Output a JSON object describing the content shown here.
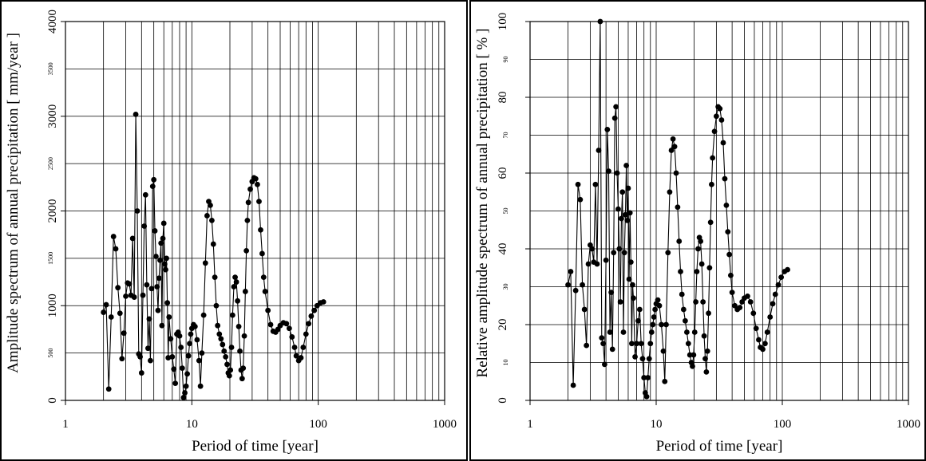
{
  "chart_data": [
    {
      "type": "scatter",
      "title": "",
      "xlabel": "Period of time [year]",
      "ylabel": "Amplitude spectrum of annual precipitation [ mm/year ]",
      "x_scale": "log",
      "xlim": [
        1,
        1000
      ],
      "ylim": [
        0,
        4000
      ],
      "x_tick_labels": [
        "1",
        "10",
        "100",
        "1000"
      ],
      "y_tick_labels_major": [
        "0",
        "1000",
        "2000",
        "3000",
        "4000"
      ],
      "y_tick_labels_minor": [
        "500",
        "1500",
        "2500",
        "3500"
      ],
      "grid": true,
      "marker": "filled circle with connecting line",
      "series": [
        {
          "points": [
            [
              2.0,
              930
            ],
            [
              2.1,
              1010
            ],
            [
              2.2,
              120
            ],
            [
              2.3,
              880
            ],
            [
              2.4,
              1730
            ],
            [
              2.5,
              1600
            ],
            [
              2.6,
              1190
            ],
            [
              2.7,
              920
            ],
            [
              2.8,
              440
            ],
            [
              2.9,
              710
            ],
            [
              3.0,
              1100
            ],
            [
              3.1,
              1240
            ],
            [
              3.2,
              1230
            ],
            [
              3.3,
              1110
            ],
            [
              3.4,
              1710
            ],
            [
              3.5,
              1090
            ],
            [
              3.6,
              3020
            ],
            [
              3.7,
              2000
            ],
            [
              3.8,
              490
            ],
            [
              3.9,
              460
            ],
            [
              4.0,
              290
            ],
            [
              4.1,
              1110
            ],
            [
              4.2,
              1840
            ],
            [
              4.3,
              2170
            ],
            [
              4.4,
              1220
            ],
            [
              4.5,
              550
            ],
            [
              4.6,
              860
            ],
            [
              4.7,
              420
            ],
            [
              4.8,
              1180
            ],
            [
              4.9,
              2260
            ],
            [
              5.0,
              2330
            ],
            [
              5.1,
              1790
            ],
            [
              5.2,
              1520
            ],
            [
              5.3,
              1200
            ],
            [
              5.4,
              950
            ],
            [
              5.5,
              1290
            ],
            [
              5.6,
              1480
            ],
            [
              5.7,
              1660
            ],
            [
              5.8,
              790
            ],
            [
              5.9,
              1710
            ],
            [
              6.0,
              1870
            ],
            [
              6.1,
              1440
            ],
            [
              6.2,
              1380
            ],
            [
              6.3,
              1500
            ],
            [
              6.4,
              1030
            ],
            [
              6.5,
              450
            ],
            [
              6.6,
              880
            ],
            [
              6.8,
              650
            ],
            [
              7.0,
              460
            ],
            [
              7.2,
              330
            ],
            [
              7.4,
              180
            ],
            [
              7.6,
              700
            ],
            [
              7.8,
              720
            ],
            [
              8.0,
              680
            ],
            [
              8.2,
              560
            ],
            [
              8.4,
              340
            ],
            [
              8.6,
              30
            ],
            [
              8.8,
              80
            ],
            [
              9.0,
              150
            ],
            [
              9.2,
              280
            ],
            [
              9.4,
              470
            ],
            [
              9.6,
              600
            ],
            [
              9.8,
              700
            ],
            [
              10.0,
              760
            ],
            [
              10.3,
              800
            ],
            [
              10.6,
              780
            ],
            [
              11.0,
              640
            ],
            [
              11.4,
              420
            ],
            [
              11.7,
              150
            ],
            [
              12.0,
              500
            ],
            [
              12.4,
              900
            ],
            [
              12.8,
              1450
            ],
            [
              13.2,
              1950
            ],
            [
              13.6,
              2100
            ],
            [
              14.0,
              2060
            ],
            [
              14.4,
              1900
            ],
            [
              14.8,
              1650
            ],
            [
              15.2,
              1300
            ],
            [
              15.6,
              1000
            ],
            [
              16.0,
              790
            ],
            [
              16.5,
              700
            ],
            [
              17.0,
              650
            ],
            [
              17.5,
              590
            ],
            [
              18.0,
              520
            ],
            [
              18.5,
              460
            ],
            [
              19.0,
              380
            ],
            [
              19.4,
              290
            ],
            [
              19.8,
              260
            ],
            [
              20.2,
              320
            ],
            [
              20.6,
              560
            ],
            [
              21.0,
              900
            ],
            [
              21.5,
              1200
            ],
            [
              22.0,
              1300
            ],
            [
              22.5,
              1250
            ],
            [
              23.0,
              1050
            ],
            [
              23.5,
              780
            ],
            [
              24.0,
              520
            ],
            [
              24.5,
              320
            ],
            [
              25.0,
              230
            ],
            [
              25.5,
              340
            ],
            [
              26.0,
              680
            ],
            [
              26.5,
              1150
            ],
            [
              27.0,
              1580
            ],
            [
              27.5,
              1900
            ],
            [
              28.0,
              2090
            ],
            [
              29.0,
              2230
            ],
            [
              30.0,
              2310
            ],
            [
              31.0,
              2350
            ],
            [
              32.0,
              2340
            ],
            [
              33.0,
              2280
            ],
            [
              34.0,
              2100
            ],
            [
              35.0,
              1800
            ],
            [
              36.0,
              1550
            ],
            [
              37.0,
              1300
            ],
            [
              38.0,
              1150
            ],
            [
              40.0,
              950
            ],
            [
              42.0,
              800
            ],
            [
              44.0,
              730
            ],
            [
              46.0,
              720
            ],
            [
              48.0,
              750
            ],
            [
              50.0,
              790
            ],
            [
              53.0,
              820
            ],
            [
              56.0,
              810
            ],
            [
              59.0,
              760
            ],
            [
              62.0,
              670
            ],
            [
              65.0,
              560
            ],
            [
              67.0,
              470
            ],
            [
              70.0,
              420
            ],
            [
              73.0,
              450
            ],
            [
              76.0,
              560
            ],
            [
              80.0,
              700
            ],
            [
              84.0,
              810
            ],
            [
              88.0,
              890
            ],
            [
              93.0,
              950
            ],
            [
              98.0,
              1000
            ],
            [
              104.0,
              1030
            ],
            [
              110.0,
              1040
            ]
          ]
        }
      ]
    },
    {
      "type": "scatter",
      "title": "",
      "xlabel": "Period of time [year]",
      "ylabel": "Relative amplitude spectrum of annual precipitation [ % ]",
      "x_scale": "log",
      "xlim": [
        1,
        1000
      ],
      "ylim": [
        0,
        100
      ],
      "x_tick_labels": [
        "1",
        "10",
        "100",
        "1000"
      ],
      "y_tick_labels_major": [
        "0",
        "20",
        "40",
        "60",
        "80",
        "100"
      ],
      "y_tick_labels_minor": [
        "10",
        "30",
        "50",
        "70",
        "90"
      ],
      "grid": true,
      "marker": "filled circle with connecting line",
      "series": [
        {
          "points": [
            [
              2.0,
              30.5
            ],
            [
              2.1,
              34
            ],
            [
              2.2,
              4
            ],
            [
              2.3,
              29
            ],
            [
              2.4,
              57
            ],
            [
              2.5,
              53
            ],
            [
              2.6,
              30.5
            ],
            [
              2.7,
              24
            ],
            [
              2.8,
              14.5
            ],
            [
              2.9,
              36
            ],
            [
              3.0,
              41
            ],
            [
              3.1,
              40
            ],
            [
              3.2,
              36.5
            ],
            [
              3.3,
              57
            ],
            [
              3.4,
              36
            ],
            [
              3.5,
              66
            ],
            [
              3.6,
              100
            ],
            [
              3.7,
              16.5
            ],
            [
              3.8,
              15
            ],
            [
              3.9,
              9.5
            ],
            [
              4.0,
              37
            ],
            [
              4.1,
              71.5
            ],
            [
              4.2,
              60.5
            ],
            [
              4.3,
              18
            ],
            [
              4.4,
              28.5
            ],
            [
              4.5,
              13.5
            ],
            [
              4.6,
              39
            ],
            [
              4.7,
              74.5
            ],
            [
              4.8,
              77.5
            ],
            [
              4.9,
              60
            ],
            [
              5.0,
              50.5
            ],
            [
              5.1,
              40
            ],
            [
              5.2,
              26
            ],
            [
              5.3,
              48
            ],
            [
              5.4,
              55
            ],
            [
              5.5,
              18
            ],
            [
              5.6,
              39
            ],
            [
              5.7,
              49
            ],
            [
              5.8,
              62
            ],
            [
              5.9,
              47.5
            ],
            [
              6.0,
              56
            ],
            [
              6.1,
              32
            ],
            [
              6.2,
              49.5
            ],
            [
              6.3,
              36.5
            ],
            [
              6.4,
              15
            ],
            [
              6.5,
              30.5
            ],
            [
              6.6,
              27
            ],
            [
              6.8,
              11.5
            ],
            [
              7.0,
              15
            ],
            [
              7.2,
              21
            ],
            [
              7.4,
              24
            ],
            [
              7.6,
              15
            ],
            [
              7.8,
              11
            ],
            [
              8.0,
              6
            ],
            [
              8.2,
              2
            ],
            [
              8.4,
              1
            ],
            [
              8.6,
              6
            ],
            [
              8.8,
              11
            ],
            [
              9.0,
              15
            ],
            [
              9.2,
              18
            ],
            [
              9.4,
              20
            ],
            [
              9.6,
              22
            ],
            [
              9.8,
              24
            ],
            [
              10.0,
              25.5
            ],
            [
              10.3,
              26.5
            ],
            [
              10.6,
              25
            ],
            [
              11.0,
              20
            ],
            [
              11.4,
              13
            ],
            [
              11.7,
              5
            ],
            [
              12.0,
              20
            ],
            [
              12.4,
              39
            ],
            [
              12.8,
              55
            ],
            [
              13.2,
              66
            ],
            [
              13.6,
              69
            ],
            [
              14.0,
              67
            ],
            [
              14.4,
              60
            ],
            [
              14.8,
              51
            ],
            [
              15.2,
              42
            ],
            [
              15.6,
              34
            ],
            [
              16.0,
              28
            ],
            [
              16.5,
              24
            ],
            [
              17.0,
              21
            ],
            [
              17.5,
              18
            ],
            [
              18.0,
              15
            ],
            [
              18.5,
              12
            ],
            [
              19.0,
              10
            ],
            [
              19.4,
              9
            ],
            [
              19.8,
              12
            ],
            [
              20.2,
              18
            ],
            [
              20.6,
              26
            ],
            [
              21.0,
              34
            ],
            [
              21.5,
              40
            ],
            [
              22.0,
              43
            ],
            [
              22.5,
              42
            ],
            [
              23.0,
              36
            ],
            [
              23.5,
              26
            ],
            [
              24.0,
              17
            ],
            [
              24.5,
              11
            ],
            [
              25.0,
              7.5
            ],
            [
              25.5,
              13
            ],
            [
              26.0,
              23
            ],
            [
              26.5,
              35
            ],
            [
              27.0,
              47
            ],
            [
              27.5,
              57
            ],
            [
              28.0,
              64
            ],
            [
              29.0,
              71
            ],
            [
              30.0,
              75
            ],
            [
              31.0,
              77.5
            ],
            [
              32.0,
              77
            ],
            [
              33.0,
              74
            ],
            [
              34.0,
              68
            ],
            [
              35.0,
              58.5
            ],
            [
              36.0,
              51.5
            ],
            [
              37.0,
              44.5
            ],
            [
              38.0,
              38.5
            ],
            [
              39.0,
              33
            ],
            [
              40.0,
              28.5
            ],
            [
              42.0,
              25
            ],
            [
              44.0,
              24
            ],
            [
              46.0,
              24.5
            ],
            [
              48.0,
              26
            ],
            [
              50.0,
              27
            ],
            [
              53.0,
              27.5
            ],
            [
              56.0,
              26
            ],
            [
              59.0,
              23
            ],
            [
              62.0,
              19
            ],
            [
              65.0,
              16
            ],
            [
              67.0,
              14
            ],
            [
              70.0,
              13.5
            ],
            [
              73.0,
              15
            ],
            [
              76.0,
              18
            ],
            [
              80.0,
              22
            ],
            [
              84.0,
              25.5
            ],
            [
              88.0,
              28
            ],
            [
              93.0,
              30.5
            ],
            [
              98.0,
              32.5
            ],
            [
              104.0,
              34
            ],
            [
              110.0,
              34.5
            ]
          ]
        }
      ]
    }
  ]
}
